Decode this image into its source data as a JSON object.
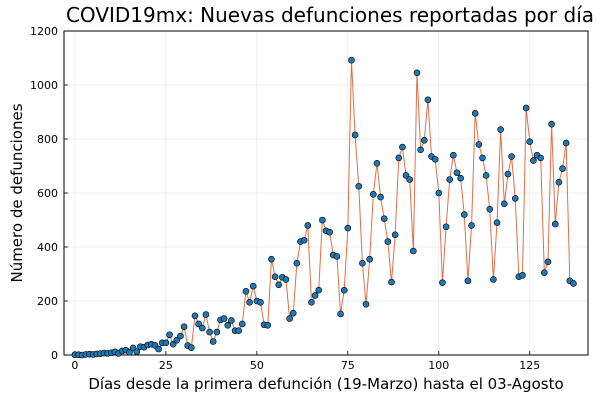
{
  "chart_data": {
    "type": "line",
    "title": "COVID19mx: Nuevas defunciones reportadas por día",
    "xlabel": "Días desde la primera defunción (19-Marzo) hasta el 03-Agosto",
    "ylabel": "Número de defunciones",
    "xlim": [
      -3,
      141
    ],
    "ylim": [
      0,
      1200
    ],
    "xticks": [
      0,
      25,
      50,
      75,
      100,
      125
    ],
    "yticks": [
      0,
      200,
      400,
      600,
      800,
      1000,
      1200
    ],
    "grid": true,
    "legend": "none",
    "series": [
      {
        "line_color": "#e26f46",
        "marker_color": "#1f78b4",
        "x": [
          0,
          1,
          2,
          3,
          4,
          5,
          6,
          7,
          8,
          9,
          10,
          11,
          12,
          13,
          14,
          15,
          16,
          17,
          18,
          19,
          20,
          21,
          22,
          23,
          24,
          25,
          26,
          27,
          28,
          29,
          30,
          31,
          32,
          33,
          34,
          35,
          36,
          37,
          38,
          39,
          40,
          41,
          42,
          43,
          44,
          45,
          46,
          47,
          48,
          49,
          50,
          51,
          52,
          53,
          54,
          55,
          56,
          57,
          58,
          59,
          60,
          61,
          62,
          63,
          64,
          65,
          66,
          67,
          68,
          69,
          70,
          71,
          72,
          73,
          74,
          75,
          76,
          77,
          78,
          79,
          80,
          81,
          82,
          83,
          84,
          85,
          86,
          87,
          88,
          89,
          90,
          91,
          92,
          93,
          94,
          95,
          96,
          97,
          98,
          99,
          100,
          101,
          102,
          103,
          104,
          105,
          106,
          107,
          108,
          109,
          110,
          111,
          112,
          113,
          114,
          115,
          116,
          117,
          118,
          119,
          120,
          121,
          122,
          123,
          124,
          125,
          126,
          127,
          128,
          129,
          130,
          131,
          132,
          133,
          134,
          135,
          136,
          137
        ],
        "y": [
          1,
          1,
          0,
          2,
          3,
          2,
          4,
          5,
          7,
          6,
          8,
          12,
          6,
          15,
          18,
          10,
          26,
          12,
          31,
          29,
          37,
          40,
          36,
          22,
          45,
          45,
          75,
          40,
          55,
          70,
          105,
          35,
          27,
          145,
          115,
          100,
          150,
          85,
          50,
          85,
          130,
          135,
          110,
          128,
          90,
          90,
          115,
          236,
          195,
          255,
          200,
          195,
          112,
          110,
          355,
          290,
          260,
          288,
          280,
          135,
          155,
          340,
          420,
          425,
          480,
          195,
          220,
          240,
          500,
          460,
          455,
          370,
          365,
          152,
          240,
          470,
          1092,
          815,
          625,
          340,
          188,
          355,
          595,
          710,
          585,
          505,
          420,
          270,
          445,
          730,
          770,
          665,
          650,
          385,
          1045,
          760,
          795,
          945,
          735,
          725,
          600,
          268,
          475,
          650,
          740,
          675,
          655,
          520,
          275,
          480,
          895,
          780,
          730,
          665,
          540,
          280,
          490,
          835,
          560,
          670,
          735,
          580,
          290,
          295,
          915,
          790,
          720,
          740,
          730,
          305,
          345,
          855,
          485,
          640,
          690,
          785,
          275,
          265
        ]
      }
    ]
  }
}
